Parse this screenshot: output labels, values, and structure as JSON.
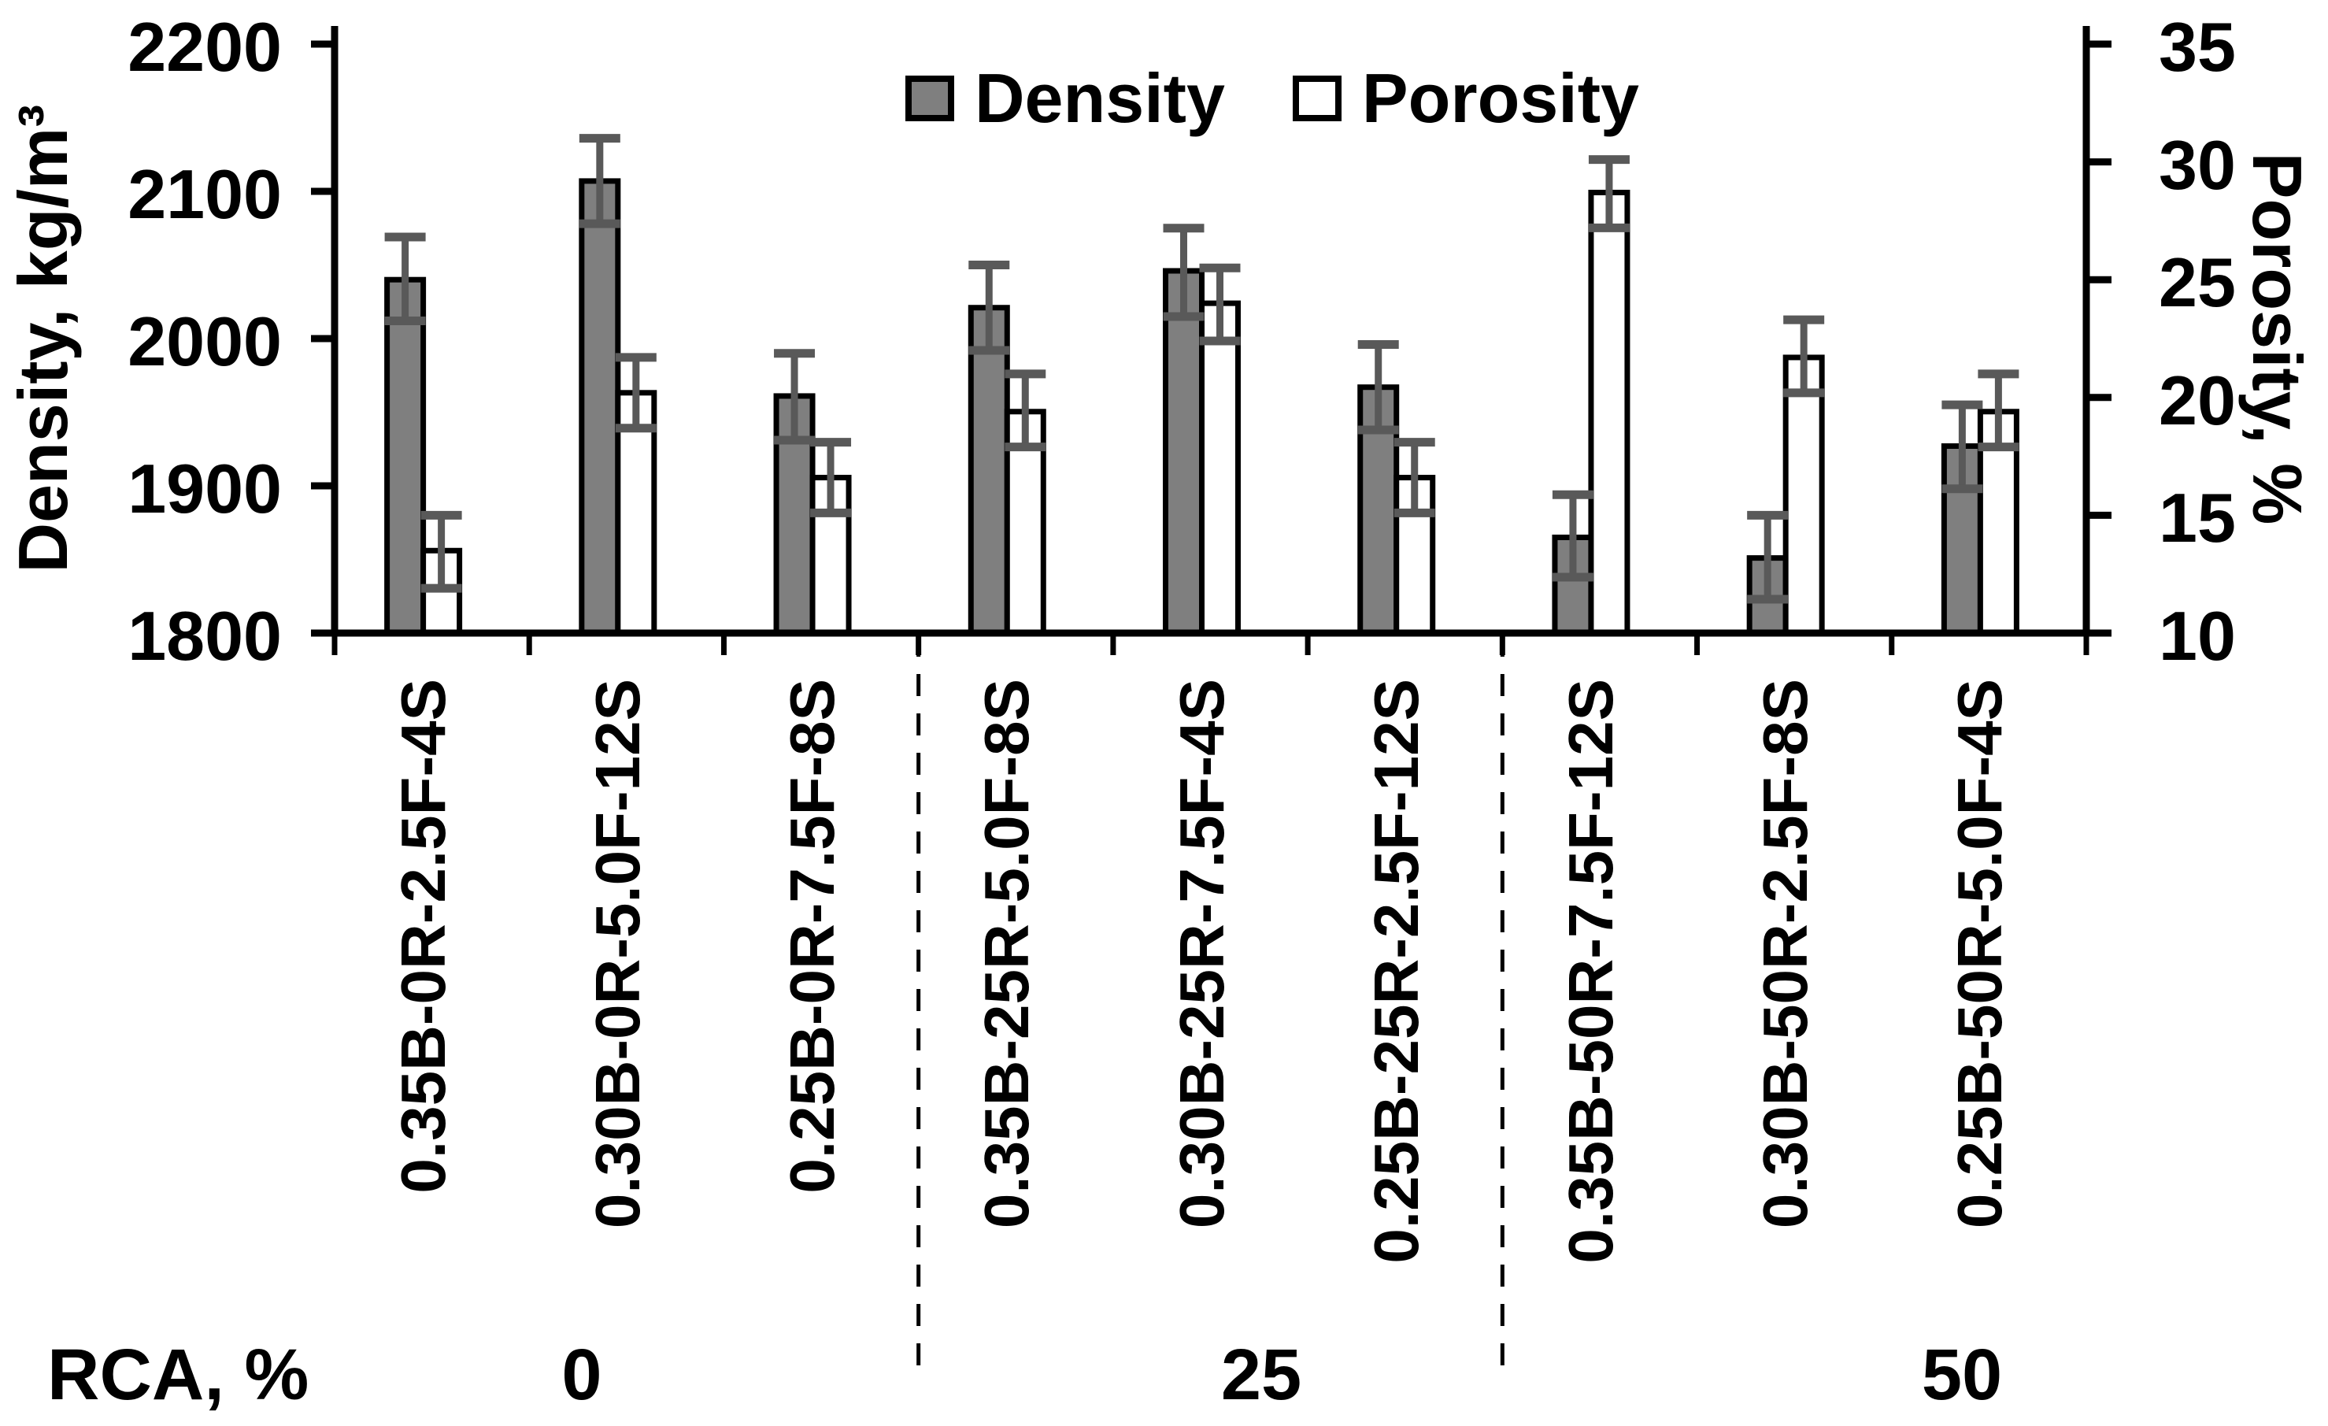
{
  "legend": {
    "density_label": "Density",
    "porosity_label": "Porosity"
  },
  "axes": {
    "left_title": "Density, kg/m³",
    "right_title": "Porosity, %"
  },
  "group_axis": {
    "label": "RCA, %",
    "values": [
      "0",
      "25",
      "50"
    ]
  },
  "colors": {
    "density_fill": "#7f7f7f",
    "porosity_fill": "#ffffff",
    "bar_border": "#000000",
    "error_bar": "#595959",
    "axis": "#000000",
    "background": "#ffffff"
  },
  "chart_data": {
    "type": "bar",
    "title": "",
    "grid": false,
    "legend_position": "top-center",
    "legend_entries": [
      "Density",
      "Porosity"
    ],
    "categories": [
      "0.35B-0R-2.5F-4S",
      "0.30B-0R-5.0F-12S",
      "0.25B-0R-7.5F-8S",
      "0.35B-25R-5.0F-8S",
      "0.30B-25R-7.5F-4S",
      "0.25B-25R-2.5F-12S",
      "0.35B-50R-7.5F-12S",
      "0.30B-50R-2.5F-8S",
      "0.25B-50R-5.0F-4S"
    ],
    "groups": [
      {
        "label": "0",
        "from": 0,
        "to": 2
      },
      {
        "label": "25",
        "from": 3,
        "to": 5
      },
      {
        "label": "50",
        "from": 6,
        "to": 8
      }
    ],
    "group_axis_label": "RCA, %",
    "left_axis": {
      "label": "Density, kg/m³",
      "min": 1800,
      "max": 2200,
      "tick_step": 100,
      "ticks": [
        2200,
        2100,
        2000,
        1900,
        1800
      ]
    },
    "right_axis": {
      "label": "Porosity, %",
      "min": 10,
      "max": 35,
      "tick_step": 5,
      "ticks": [
        35,
        30,
        25,
        20,
        15,
        10
      ]
    },
    "series": [
      {
        "name": "Density",
        "axis": "left",
        "unit": "kg/m³",
        "values": [
          2040,
          2107,
          1961,
          2021,
          2046,
          1967,
          1865,
          1851,
          1927
        ],
        "error_low": [
          2012,
          2078,
          1931,
          1992,
          2015,
          1938,
          1838,
          1823,
          1898
        ],
        "error_high": [
          2069,
          2136,
          1990,
          2050,
          2075,
          1996,
          1894,
          1880,
          1955
        ]
      },
      {
        "name": "Porosity",
        "axis": "right",
        "unit": "%",
        "values": [
          13.5,
          20.2,
          16.6,
          19.4,
          24.0,
          16.6,
          28.7,
          21.7,
          19.4
        ],
        "error_low": [
          11.9,
          18.7,
          15.1,
          17.9,
          22.4,
          15.1,
          27.2,
          20.2,
          17.9
        ],
        "error_high": [
          15.0,
          21.7,
          18.1,
          21.0,
          25.5,
          18.1,
          30.1,
          23.3,
          21.0
        ]
      }
    ]
  }
}
